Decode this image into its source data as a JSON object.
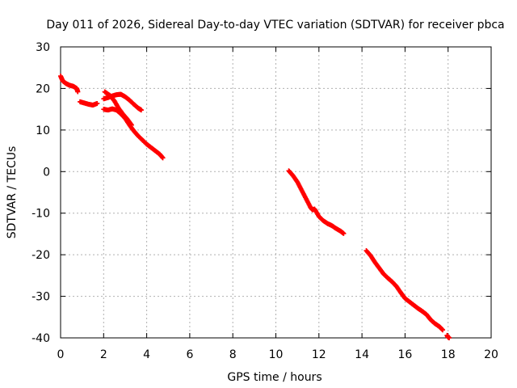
{
  "chart_data": {
    "type": "scatter",
    "title": "Day 011 of 2026, Sidereal Day-to-day VTEC variation (SDTVAR) for receiver pbca",
    "xlabel": "GPS time / hours",
    "ylabel": "SDTVAR / TECUs",
    "xlim": [
      0,
      20
    ],
    "ylim": [
      -40,
      30
    ],
    "x_ticks": [
      "0",
      "2",
      "4",
      "6",
      "8",
      "10",
      "12",
      "14",
      "16",
      "18",
      "20"
    ],
    "y_ticks": [
      "-40",
      "-30",
      "-20",
      "-10",
      "0",
      "10",
      "20",
      "30"
    ],
    "grid": true,
    "marker_color": "#ff0000",
    "series": [
      {
        "name": "track-1",
        "points": [
          [
            0.0,
            23.0
          ],
          [
            0.1,
            21.8
          ],
          [
            0.25,
            21.2
          ],
          [
            0.4,
            20.8
          ],
          [
            0.6,
            20.5
          ],
          [
            0.75,
            20.0
          ],
          [
            0.8,
            19.2
          ]
        ]
      },
      {
        "name": "track-2",
        "points": [
          [
            0.9,
            16.8
          ],
          [
            1.1,
            16.5
          ],
          [
            1.3,
            16.2
          ],
          [
            1.5,
            16.0
          ],
          [
            1.7,
            16.4
          ]
        ]
      },
      {
        "name": "track-3",
        "points": [
          [
            2.0,
            17.5
          ],
          [
            2.2,
            17.8
          ],
          [
            2.4,
            18.2
          ],
          [
            2.6,
            18.5
          ],
          [
            2.8,
            18.6
          ],
          [
            3.0,
            18.0
          ],
          [
            3.2,
            17.2
          ],
          [
            3.4,
            16.2
          ],
          [
            3.6,
            15.3
          ],
          [
            3.75,
            14.8
          ]
        ]
      },
      {
        "name": "track-4",
        "points": [
          [
            2.05,
            19.2
          ],
          [
            2.3,
            18.3
          ],
          [
            2.5,
            17.0
          ],
          [
            2.7,
            15.2
          ],
          [
            2.9,
            13.8
          ],
          [
            3.1,
            12.6
          ],
          [
            3.3,
            11.2
          ]
        ]
      },
      {
        "name": "track-5",
        "points": [
          [
            2.0,
            15.0
          ],
          [
            2.2,
            14.8
          ],
          [
            2.4,
            15.1
          ],
          [
            2.6,
            14.8
          ],
          [
            2.8,
            13.9
          ],
          [
            3.0,
            12.8
          ],
          [
            3.2,
            11.2
          ],
          [
            3.4,
            9.8
          ],
          [
            3.6,
            8.6
          ],
          [
            3.8,
            7.6
          ],
          [
            4.0,
            6.6
          ],
          [
            4.2,
            5.8
          ],
          [
            4.4,
            5.0
          ],
          [
            4.6,
            4.2
          ],
          [
            4.75,
            3.3
          ]
        ]
      },
      {
        "name": "track-6",
        "points": [
          [
            10.6,
            0.2
          ],
          [
            10.8,
            -1.0
          ],
          [
            11.0,
            -2.5
          ],
          [
            11.2,
            -4.5
          ],
          [
            11.4,
            -6.5
          ],
          [
            11.6,
            -8.5
          ],
          [
            11.7,
            -9.2
          ],
          [
            11.8,
            -9.0
          ],
          [
            12.0,
            -10.8
          ],
          [
            12.2,
            -11.8
          ],
          [
            12.4,
            -12.5
          ],
          [
            12.6,
            -13.0
          ],
          [
            12.8,
            -13.7
          ],
          [
            13.0,
            -14.3
          ],
          [
            13.15,
            -14.9
          ]
        ]
      },
      {
        "name": "track-7",
        "points": [
          [
            14.2,
            -19.0
          ],
          [
            14.4,
            -20.2
          ],
          [
            14.6,
            -21.8
          ],
          [
            14.8,
            -23.2
          ],
          [
            15.0,
            -24.6
          ],
          [
            15.2,
            -25.6
          ],
          [
            15.4,
            -26.5
          ],
          [
            15.6,
            -27.6
          ],
          [
            15.8,
            -29.1
          ],
          [
            16.0,
            -30.5
          ],
          [
            16.2,
            -31.3
          ],
          [
            16.4,
            -32.1
          ],
          [
            16.6,
            -32.9
          ],
          [
            16.8,
            -33.6
          ],
          [
            17.0,
            -34.4
          ],
          [
            17.2,
            -35.7
          ],
          [
            17.4,
            -36.6
          ],
          [
            17.6,
            -37.3
          ],
          [
            17.75,
            -38.1
          ]
        ]
      },
      {
        "name": "track-8",
        "points": [
          [
            17.95,
            -39.4
          ],
          [
            18.0,
            -39.8
          ],
          [
            18.05,
            -40.0
          ]
        ]
      }
    ]
  }
}
